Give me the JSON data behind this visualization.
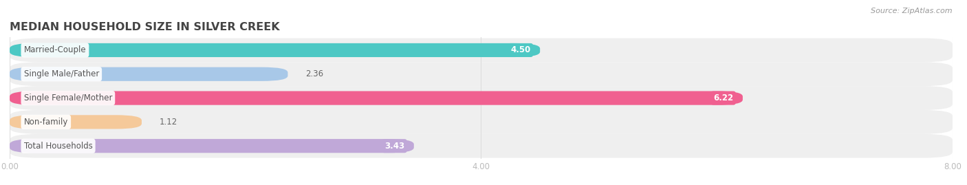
{
  "title": "MEDIAN HOUSEHOLD SIZE IN SILVER CREEK",
  "source": "Source: ZipAtlas.com",
  "categories": [
    "Married-Couple",
    "Single Male/Father",
    "Single Female/Mother",
    "Non-family",
    "Total Households"
  ],
  "values": [
    4.5,
    2.36,
    6.22,
    1.12,
    3.43
  ],
  "bar_colors": [
    "#4dc8c4",
    "#a8c8e8",
    "#f06090",
    "#f5c99a",
    "#c0a8d8"
  ],
  "bar_bg_color": "#efefef",
  "row_bg_colors": [
    "#f8f8f8",
    "#f4f4f4"
  ],
  "xlim": [
    0,
    8.0
  ],
  "xticks": [
    0.0,
    4.0,
    8.0
  ],
  "xtick_labels": [
    "0.00",
    "4.00",
    "8.00"
  ],
  "title_fontsize": 11.5,
  "label_fontsize": 8.5,
  "value_fontsize": 8.5,
  "source_fontsize": 8,
  "bg_color": "#ffffff",
  "bar_height": 0.58,
  "label_color": "#555555",
  "value_color_outside": "#666666",
  "value_color_inside": "#ffffff",
  "title_color": "#444444",
  "source_color": "#999999",
  "tick_color": "#bbbbbb",
  "grid_color": "#dddddd",
  "value_threshold": 2.8
}
